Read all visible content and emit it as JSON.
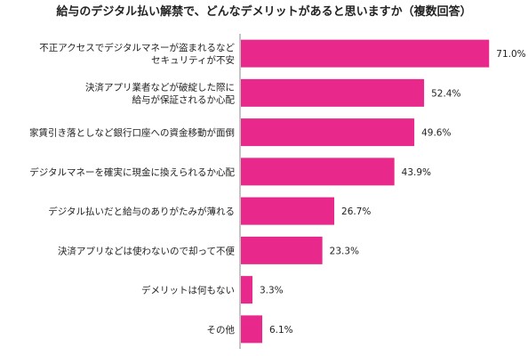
{
  "chart_data": {
    "type": "bar",
    "orientation": "horizontal",
    "title": "給与のデジタル払い解禁で、どんなデメリットがあると思いますか（複数回答）",
    "categories": [
      [
        "不正アクセスでデジタルマネーが盗まれるなど",
        "セキュリティが不安"
      ],
      [
        "決済アプリ業者などが破綻した際に",
        "給与が保証されるか心配"
      ],
      [
        "家賃引き落としなど銀行口座への資金移動が面倒"
      ],
      [
        "デジタルマネーを確実に現金に換えられるか心配"
      ],
      [
        "デジタル払いだと給与のありがたみが薄れる"
      ],
      [
        "決済アプリなどは使わないので却って不便"
      ],
      [
        "デメリットは何もない"
      ],
      [
        "その他"
      ]
    ],
    "values": [
      71.0,
      52.4,
      49.6,
      43.9,
      26.7,
      23.3,
      3.3,
      6.1
    ],
    "value_labels": [
      "71.0%",
      "52.4%",
      "49.6%",
      "43.9%",
      "26.7%",
      "23.3%",
      "3.3%",
      "6.1%"
    ],
    "xlim": [
      0,
      75
    ],
    "bar_color": "#e8288a",
    "axis_color": "#888888",
    "grid": false,
    "legend": "none"
  }
}
